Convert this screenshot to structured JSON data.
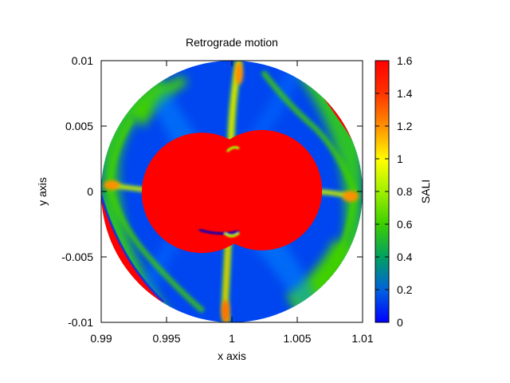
{
  "chart_data": {
    "type": "heatmap",
    "title": "Retrograde motion",
    "xlabel": "x axis",
    "ylabel": "y axis",
    "colorbar_label": "SALI",
    "xlim": [
      0.99,
      1.01
    ],
    "ylim": [
      -0.01,
      0.01
    ],
    "x_ticks": [
      {
        "value": 0.99,
        "label": "0.99"
      },
      {
        "value": 0.995,
        "label": "0.995"
      },
      {
        "value": 1.0,
        "label": "1"
      },
      {
        "value": 1.005,
        "label": "1.005"
      },
      {
        "value": 1.01,
        "label": "1.01"
      }
    ],
    "y_ticks": [
      {
        "value": -0.01,
        "label": "-0.01"
      },
      {
        "value": -0.005,
        "label": "-0.005"
      },
      {
        "value": 0.0,
        "label": "0"
      },
      {
        "value": 0.005,
        "label": "0.005"
      },
      {
        "value": 0.01,
        "label": "0.01"
      }
    ],
    "colorbar_range": [
      0,
      1.6
    ],
    "colorbar_ticks": [
      {
        "value": 0,
        "label": "0"
      },
      {
        "value": 0.2,
        "label": "0.2"
      },
      {
        "value": 0.4,
        "label": "0.4"
      },
      {
        "value": 0.6,
        "label": "0.6"
      },
      {
        "value": 0.8,
        "label": "0.8"
      },
      {
        "value": 1.0,
        "label": "1"
      },
      {
        "value": 1.2,
        "label": "1.2"
      },
      {
        "value": 1.4,
        "label": "1.4"
      },
      {
        "value": 1.6,
        "label": "1.6"
      }
    ],
    "colormap": [
      "#0000ff",
      "#0060e0",
      "#00a060",
      "#40d000",
      "#a0f000",
      "#ffff00",
      "#ff9000",
      "#ff3000",
      "#ff0000"
    ],
    "domain": {
      "shape": "disk",
      "center": [
        1.0,
        0.0
      ],
      "radius": 0.01
    },
    "regions": {
      "background_sali": 0.05,
      "central_lobes": {
        "sali": 1.6,
        "centers": [
          [
            0.9977,
            -0.0001
          ],
          [
            1.0023,
            0.0001
          ]
        ],
        "radius": 0.0046
      },
      "edge_patches_sali": 1.6
    }
  }
}
